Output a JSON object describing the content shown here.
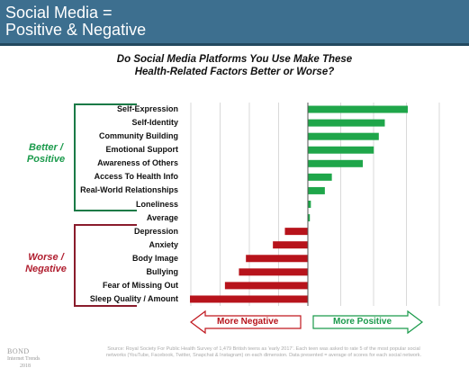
{
  "header": {
    "title_line1": "Social Media =",
    "title_line2": "Positive & Negative"
  },
  "subtitle": {
    "line1": "Do Social Media Platforms You Use Make These",
    "line2": "Health-Related Factors Better or Worse?"
  },
  "groups": {
    "better": {
      "line1": "Better /",
      "line2": "Positive",
      "color": "#1a9a4b"
    },
    "worse": {
      "line1": "Worse /",
      "line2": "Negative",
      "color": "#b01e2f"
    }
  },
  "arrows": {
    "negative_label": "More Negative",
    "positive_label": "More Positive",
    "negative_color": "#c0171e",
    "positive_color": "#1a9a4b"
  },
  "footer": {
    "logo_line1": "BOND",
    "logo_line2": "Internet Trends",
    "logo_line3": "2018",
    "source": "Source: Royal Society For Public Health Survey of 1,479 British teens as 'early 2017'. Each teen was asked to rate 5 of the most popular social networks (YouTube, Facebook, Twitter, Snapchat & Instagram) on each dimension. Data presented = average of scores for each social network."
  },
  "chart_data": {
    "type": "bar",
    "orientation": "horizontal",
    "title": "Do Social Media Platforms You Use Make These Health-Related Factors Better or Worse?",
    "categories": [
      "Self-Expression",
      "Self-Identity",
      "Community Building",
      "Emotional Support",
      "Awareness of Others",
      "Access To Health Info",
      "Real-World Relationships",
      "Loneliness",
      "Average",
      "Depression",
      "Anxiety",
      "Body Image",
      "Bullying",
      "Fear of Missing Out",
      "Sleep Quality / Amount"
    ],
    "values": [
      100,
      77,
      71,
      66,
      55,
      24,
      17,
      3,
      2,
      -23,
      -35,
      -62,
      -69,
      -83,
      -118
    ],
    "x_range": [
      -120,
      120
    ],
    "grid": true,
    "positive_color": "#1fa64a",
    "negative_color": "#b7131b"
  }
}
